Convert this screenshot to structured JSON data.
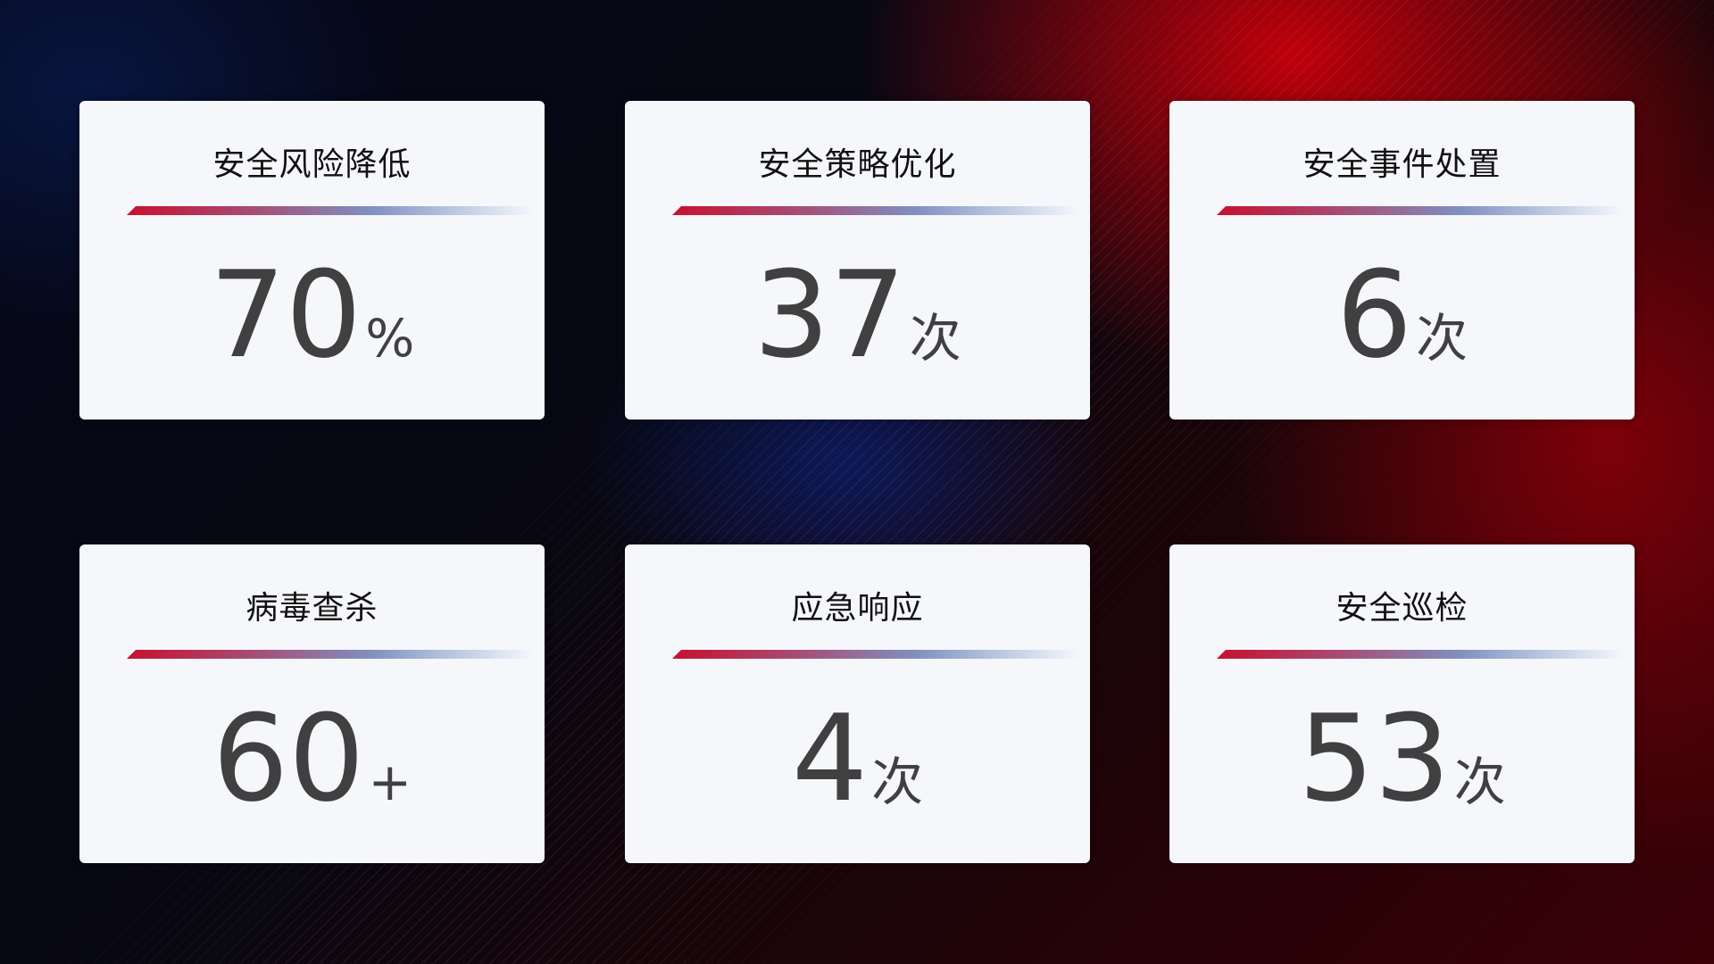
{
  "cards": [
    {
      "title": "安全风险降低",
      "value": "70",
      "unit": "%"
    },
    {
      "title": "安全策略优化",
      "value": "37",
      "unit": "次"
    },
    {
      "title": "安全事件处置",
      "value": "6",
      "unit": "次"
    },
    {
      "title": "病毒查杀",
      "value": "60",
      "unit": "+"
    },
    {
      "title": "应急响应",
      "value": "4",
      "unit": "次"
    },
    {
      "title": "安全巡检",
      "value": "53",
      "unit": "次"
    }
  ],
  "colors": {
    "accent_red": "#c8102e",
    "accent_blue": "#7f90c0",
    "card_bg": "#f5f7fb",
    "value_text": "#404040"
  }
}
